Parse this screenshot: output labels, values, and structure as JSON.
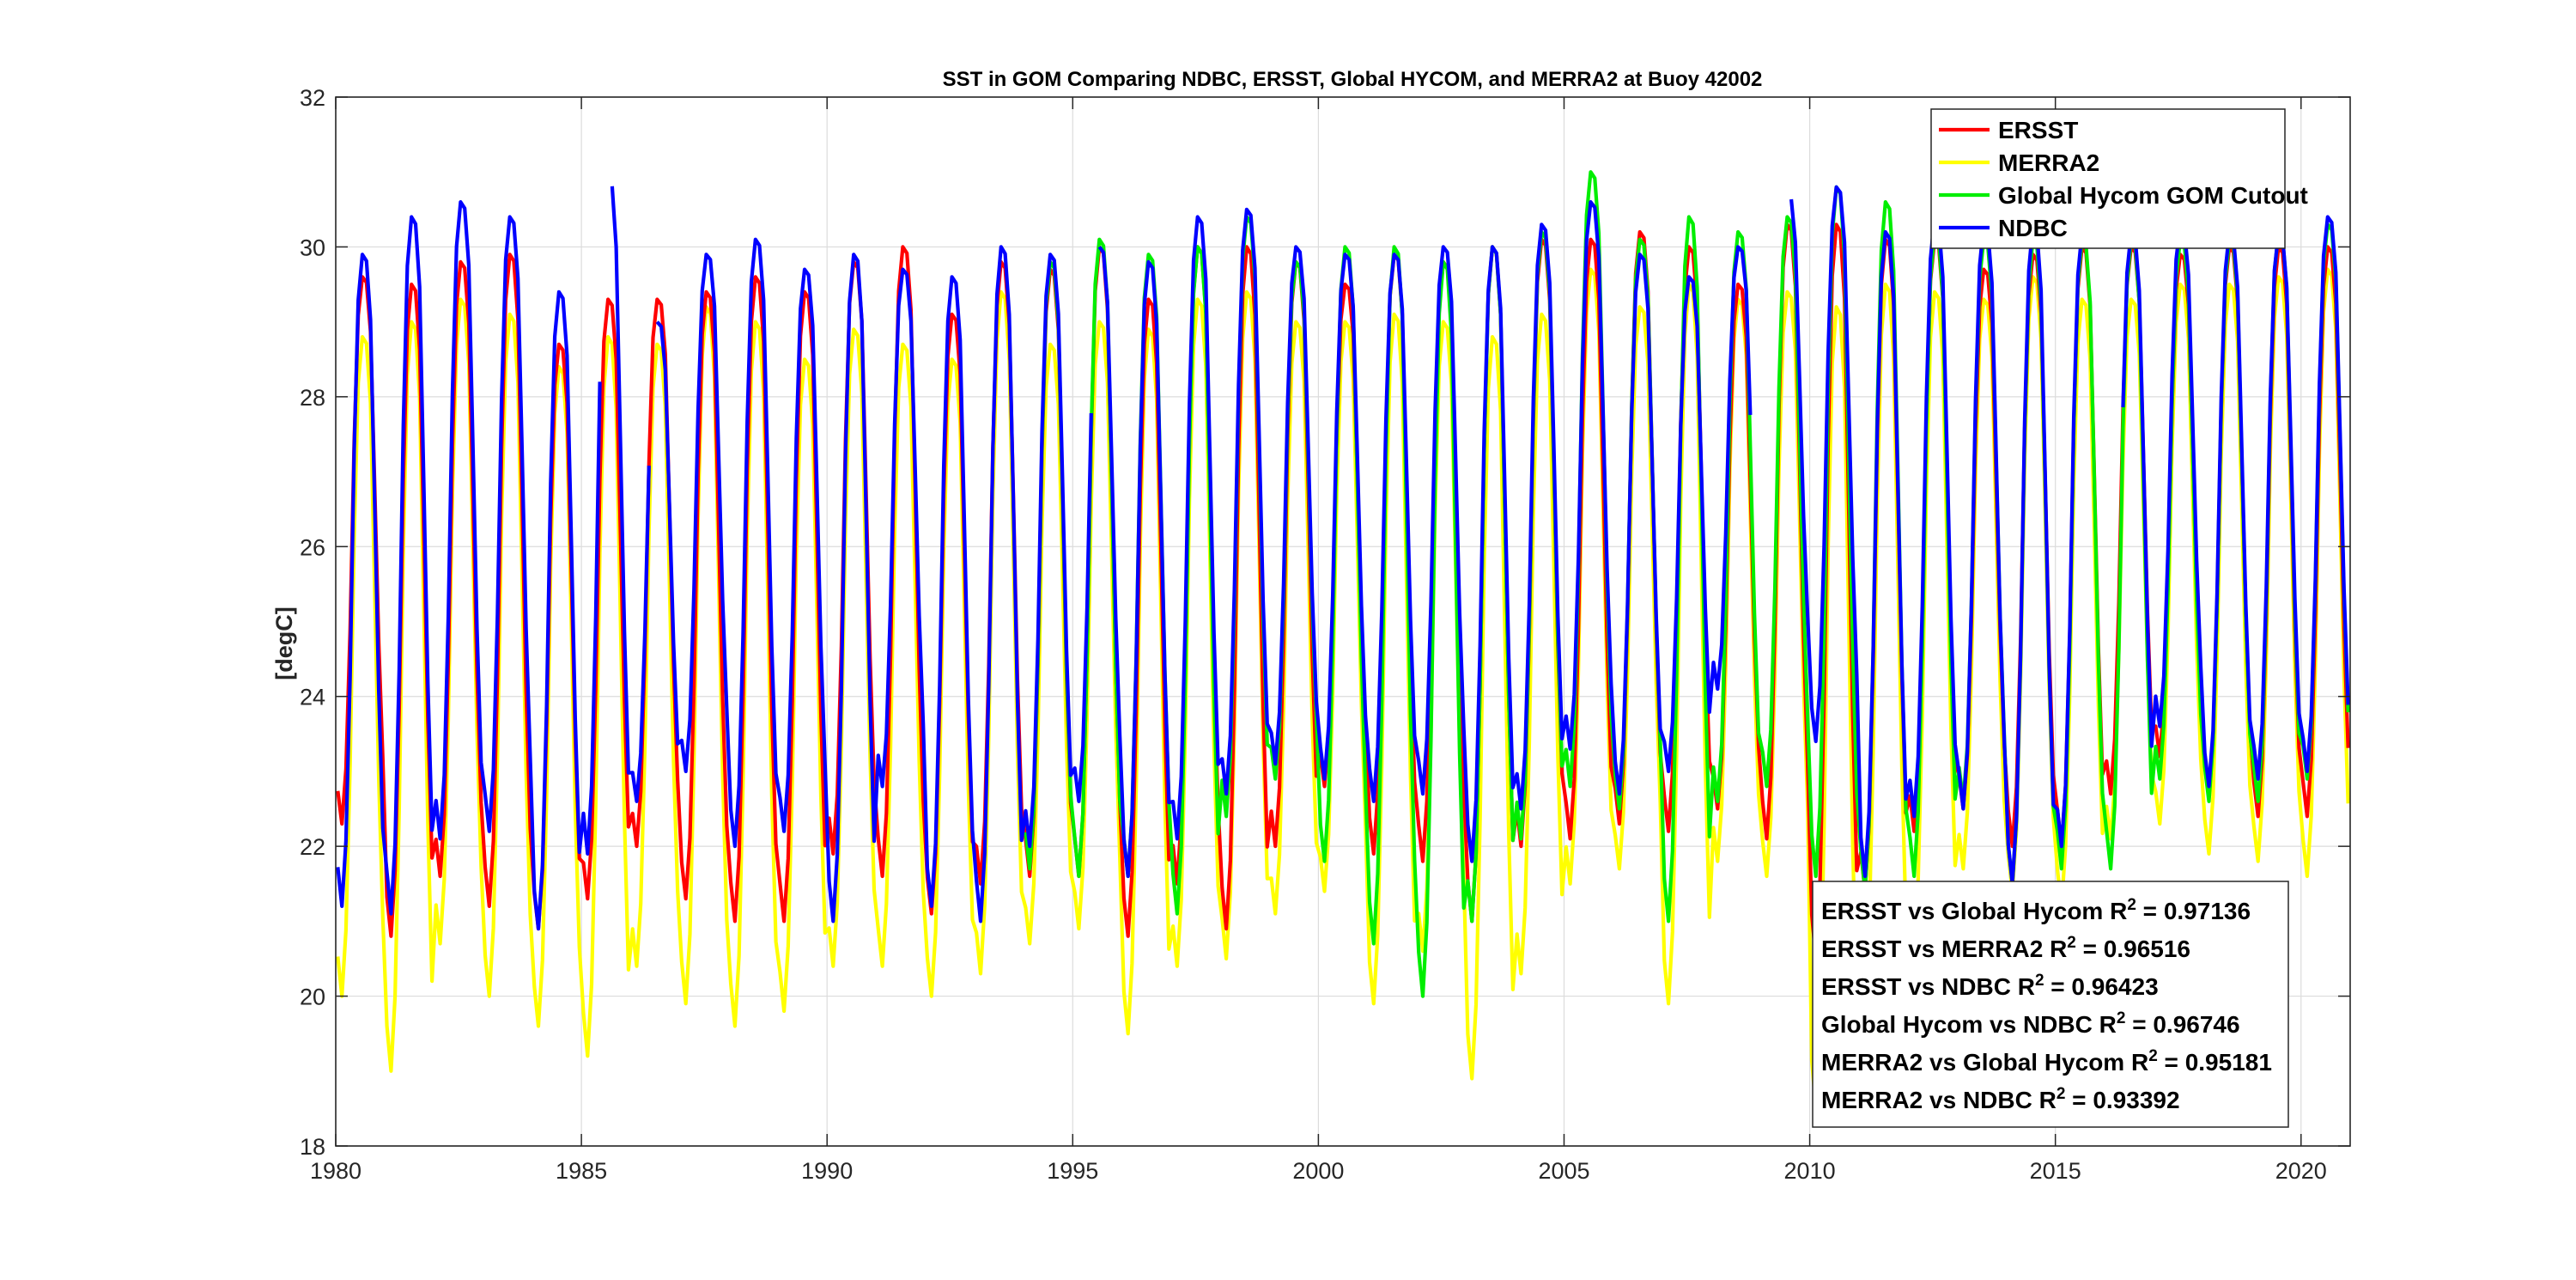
{
  "chart_data": {
    "type": "line",
    "title": "SST in GOM Comparing NDBC, ERSST, Global HYCOM, and MERRA2 at Buoy  42002",
    "xlabel": "",
    "ylabel": "[degC]",
    "xlim": [
      1980,
      2021
    ],
    "ylim": [
      18,
      32
    ],
    "xticks": [
      1980,
      1985,
      1990,
      1995,
      2000,
      2005,
      2010,
      2015,
      2020
    ],
    "yticks": [
      18,
      20,
      22,
      24,
      26,
      28,
      30,
      32
    ],
    "grid": true,
    "legend_position": "top-right",
    "note": "Monthly climatological pattern; per-year summer peak and winter trough values listed per series.",
    "years": [
      1980,
      1981,
      1982,
      1983,
      1984,
      1985,
      1986,
      1987,
      1988,
      1989,
      1990,
      1991,
      1992,
      1993,
      1994,
      1995,
      1996,
      1997,
      1998,
      1999,
      2000,
      2001,
      2002,
      2003,
      2004,
      2005,
      2006,
      2007,
      2008,
      2009,
      2010,
      2011,
      2012,
      2013,
      2014,
      2015,
      2016,
      2017,
      2018,
      2019,
      2020
    ],
    "series": [
      {
        "name": "ERSST",
        "color": "#ff0000",
        "start": 1980.0,
        "end": 2021.0,
        "peaks": [
          29.6,
          29.5,
          29.8,
          29.9,
          28.7,
          29.3,
          29.3,
          29.4,
          29.6,
          29.4,
          29.8,
          30.0,
          29.1,
          29.8,
          29.7,
          30.0,
          29.3,
          30.0,
          30.0,
          29.8,
          29.5,
          29.9,
          29.8,
          30.0,
          30.1,
          30.1,
          30.2,
          30.0,
          29.5,
          30.3,
          30.3,
          30.1,
          30.1,
          29.7,
          29.9,
          30.0,
          30.0,
          29.9,
          30.0,
          30.0,
          30.0
        ],
        "troughs": [
          22.3,
          20.8,
          21.6,
          21.2,
          20.9,
          21.3,
          22.0,
          21.3,
          21.0,
          21.0,
          21.9,
          21.6,
          21.1,
          21.5,
          21.6,
          21.6,
          20.8,
          21.5,
          20.9,
          22.0,
          22.8,
          21.9,
          21.8,
          21.0,
          22.0,
          22.1,
          22.3,
          22.2,
          22.5,
          22.1,
          20.5,
          21.4,
          22.2,
          22.5,
          22.0,
          22.0,
          22.7,
          23.2,
          22.7,
          22.4,
          22.4
        ]
      },
      {
        "name": "MERRA2",
        "color": "#ffff00",
        "start": 1980.0,
        "end": 2021.0,
        "peaks": [
          28.8,
          29.0,
          29.3,
          29.1,
          28.4,
          28.8,
          28.7,
          29.2,
          29.0,
          28.5,
          28.9,
          28.7,
          28.5,
          29.4,
          28.7,
          29.0,
          28.9,
          29.3,
          29.4,
          29.0,
          29.0,
          29.1,
          29.0,
          28.8,
          29.1,
          29.7,
          29.2,
          29.5,
          29.3,
          29.4,
          29.2,
          29.5,
          29.4,
          29.3,
          29.6,
          29.3,
          29.3,
          29.5,
          29.5,
          29.6,
          29.7
        ],
        "troughs": [
          20.0,
          19.0,
          20.7,
          20.0,
          19.6,
          19.2,
          20.4,
          19.9,
          19.6,
          19.8,
          20.4,
          20.4,
          20.0,
          20.3,
          20.7,
          20.9,
          19.5,
          20.4,
          20.5,
          21.1,
          21.4,
          19.9,
          20.6,
          18.9,
          20.3,
          21.5,
          21.7,
          19.9,
          21.8,
          21.6,
          18.5,
          19.9,
          20.7,
          21.7,
          21.4,
          21.2,
          22.1,
          22.3,
          21.9,
          21.8,
          21.6
        ]
      },
      {
        "name": "Global Hycom GOM Cutout",
        "color": "#00ee00",
        "start": 1994.0,
        "end": 2021.0,
        "peaks": [
          29.8,
          30.1,
          29.9,
          30.0,
          30.4,
          29.8,
          30.0,
          30.0,
          29.8,
          30.0,
          30.2,
          31.0,
          30.1,
          30.4,
          30.2,
          30.4,
          30.8,
          30.6,
          30.2,
          30.1,
          30.1,
          30.1,
          30.1,
          30.1,
          30.1,
          30.2,
          30.3
        ],
        "troughs": [
          21.7,
          21.6,
          21.6,
          21.1,
          22.4,
          22.9,
          21.8,
          20.7,
          20.0,
          21.0,
          22.1,
          22.8,
          22.5,
          21.0,
          22.6,
          22.8,
          21.6,
          21.4,
          21.6,
          22.6,
          21.5,
          21.7,
          21.7,
          22.9,
          22.6,
          22.6,
          22.9
        ]
      },
      {
        "name": "NDBC",
        "color": "#0000ff",
        "start": 1980.0,
        "end": 2021.0,
        "peaks": [
          29.9,
          30.4,
          30.6,
          30.4,
          29.4,
          30.9,
          29.0,
          29.9,
          30.1,
          29.7,
          29.9,
          29.7,
          29.6,
          30.0,
          29.9,
          30.0,
          29.8,
          30.4,
          30.5,
          30.0,
          29.9,
          29.9,
          30.0,
          30.0,
          30.3,
          30.6,
          29.9,
          29.6,
          30.0,
          30.7,
          30.8,
          30.2,
          30.4,
          30.3,
          30.3,
          30.2,
          30.2,
          30.3,
          30.2,
          30.2,
          30.4
        ],
        "troughs": [
          21.2,
          21.1,
          22.1,
          22.2,
          20.9,
          21.9,
          22.6,
          23.0,
          22.0,
          22.2,
          21.0,
          22.8,
          21.2,
          21.0,
          22.0,
          22.6,
          21.6,
          22.1,
          22.7,
          23.1,
          22.9,
          22.6,
          22.7,
          21.8,
          22.5,
          23.3,
          22.7,
          23.0,
          24.1,
          24.3,
          23.4,
          21.6,
          22.4,
          22.5,
          21.5,
          22.0,
          22.4,
          23.6,
          22.8,
          22.9,
          23.0
        ],
        "gaps": [
          [
            1985.4,
            1985.6
          ],
          [
            1986.4,
            1986.5
          ],
          [
            1995.4,
            1995.5
          ],
          [
            2008.8,
            2009.6
          ],
          [
            2015.7,
            2016.3
          ]
        ]
      }
    ],
    "legend": [
      "ERSST",
      "MERRA2",
      "Global Hycom GOM Cutout",
      "NDBC"
    ],
    "stats": [
      {
        "label": "ERSST vs Global Hycom R",
        "sup": "2",
        "value": " = 0.97136"
      },
      {
        "label": "ERSST vs MERRA2 R",
        "sup": "2",
        "value": " = 0.96516"
      },
      {
        "label": "ERSST vs NDBC R",
        "sup": "2",
        "value": " = 0.96423"
      },
      {
        "label": "Global Hycom vs NDBC R",
        "sup": "2",
        "value": " = 0.96746"
      },
      {
        "label": "MERRA2 vs Global Hycom R",
        "sup": "2",
        "value": " = 0.95181"
      },
      {
        "label": "MERRA2 vs NDBC R",
        "sup": "2",
        "value": " = 0.93392"
      }
    ]
  }
}
